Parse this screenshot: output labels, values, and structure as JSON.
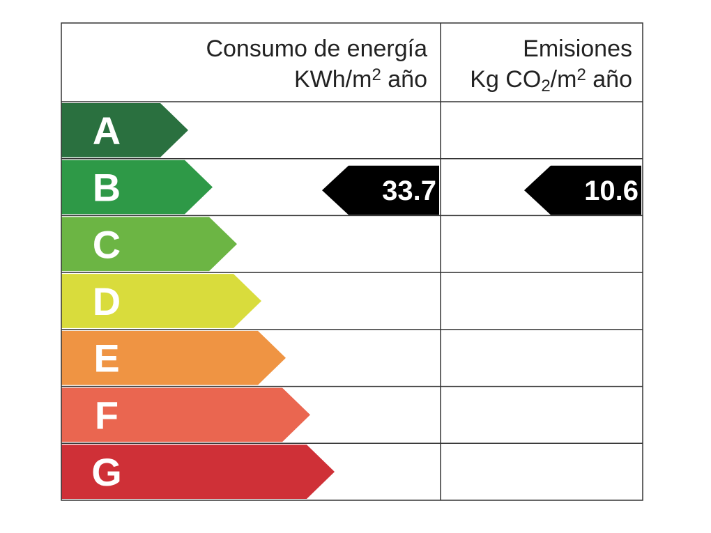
{
  "header": {
    "energy": {
      "title": "Consumo de energía",
      "unit": [
        "KWh/m",
        "2",
        " año"
      ]
    },
    "emissions": {
      "title": "Emisiones",
      "unit": [
        "Kg CO",
        "2",
        "/m",
        "2",
        " año"
      ]
    }
  },
  "ratings": [
    {
      "letter": "A",
      "color": "#2a703f"
    },
    {
      "letter": "B",
      "color": "#2e9947"
    },
    {
      "letter": "C",
      "color": "#6cb544"
    },
    {
      "letter": "D",
      "color": "#d9dc3c"
    },
    {
      "letter": "E",
      "color": "#ef9443"
    },
    {
      "letter": "F",
      "color": "#ea6650"
    },
    {
      "letter": "G",
      "color": "#cf3037"
    }
  ],
  "energy": {
    "rating": "B",
    "value": 33.7
  },
  "emissions": {
    "rating": "B",
    "value": 10.6
  }
}
